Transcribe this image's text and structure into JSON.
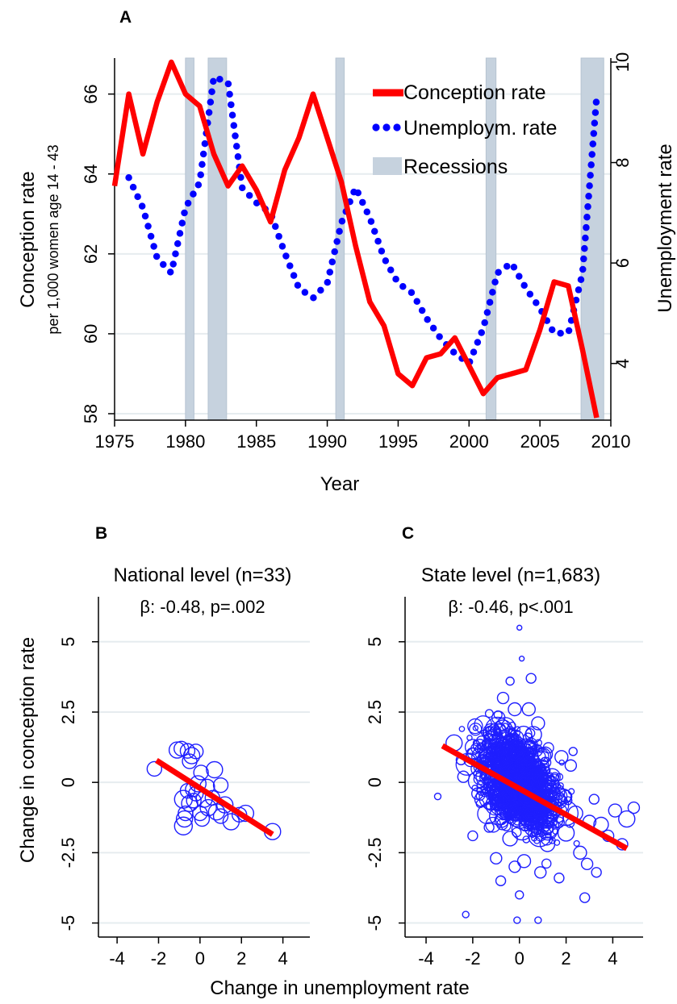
{
  "panels": {
    "A": {
      "letter": "A"
    },
    "B": {
      "letter": "B",
      "title": "National level (n=33)",
      "stat": "β: -0.48, p=.002"
    },
    "C": {
      "letter": "C",
      "title": "State level (n=1,683)",
      "stat": "β: -0.46, p<.001"
    }
  },
  "axes": {
    "A": {
      "xlabel": "Year",
      "ylabel": "Conception rate",
      "ylabel_sub": "per 1,000 women age 14 - 43",
      "y2label": "Unemployment rate",
      "xticks": [
        "1975",
        "1980",
        "1985",
        "1990",
        "1995",
        "2000",
        "2005",
        "2010"
      ],
      "yticks": [
        "58",
        "60",
        "62",
        "64",
        "66"
      ],
      "y2ticks": [
        "4",
        "6",
        "8",
        "10"
      ]
    },
    "BC": {
      "xlabel": "Change in unemployment rate",
      "ylabel": "Change in conception rate",
      "xticks": [
        "-4",
        "-2",
        "0",
        "2",
        "4"
      ],
      "yticks": [
        "-5",
        "-2.5",
        "0",
        "2.5",
        "5"
      ]
    }
  },
  "legend": [
    "Conception rate",
    "Unemploym. rate",
    "Recessions"
  ],
  "colors": {
    "conception": "#ff0000",
    "unemployment": "#0000ff",
    "recession": "#c6d2de",
    "grid": "#e6ecef",
    "scatter": "#1f1fff"
  },
  "chart_data": [
    {
      "type": "line",
      "panel": "A",
      "xlabel": "Year",
      "ylabel": "Conception rate",
      "y2label": "Unemployment rate",
      "xlim": [
        1975,
        2010
      ],
      "ylim": [
        58,
        66.8
      ],
      "y2lim": [
        3,
        10
      ],
      "recessions": [
        [
          1980,
          1980.6
        ],
        [
          1981.6,
          1982.9
        ],
        [
          1990.6,
          1991.2
        ],
        [
          2001.2,
          2001.9
        ],
        [
          2007.9,
          2009.5
        ]
      ],
      "series": [
        {
          "name": "Conception rate",
          "axis": "left",
          "x": [
            1975,
            1976,
            1977,
            1978,
            1979,
            1980,
            1981,
            1982,
            1983,
            1984,
            1985,
            1986,
            1987,
            1988,
            1989,
            1990,
            1991,
            1992,
            1993,
            1994,
            1995,
            1996,
            1997,
            1998,
            1999,
            2000,
            2001,
            2002,
            2003,
            2004,
            2005,
            2006,
            2007,
            2008,
            2009
          ],
          "values": [
            63.7,
            66.0,
            64.5,
            65.8,
            66.8,
            66.0,
            65.7,
            64.5,
            63.7,
            64.2,
            63.6,
            62.8,
            64.1,
            64.9,
            66.0,
            64.9,
            63.8,
            62.2,
            60.8,
            60.2,
            59.0,
            58.7,
            59.4,
            59.5,
            59.9,
            59.2,
            58.5,
            58.9,
            59.0,
            59.1,
            60.1,
            61.3,
            61.2,
            59.6,
            57.9
          ]
        },
        {
          "name": "Unemploym. rate",
          "axis": "right",
          "x": [
            1976,
            1977,
            1978,
            1979,
            1980,
            1981,
            1982,
            1983,
            1984,
            1985,
            1986,
            1987,
            1988,
            1989,
            1990,
            1991,
            1992,
            1993,
            1994,
            1995,
            1996,
            1997,
            1998,
            1999,
            2000,
            2001,
            2002,
            2003,
            2004,
            2005,
            2006,
            2007,
            2008,
            2009
          ],
          "values": [
            7.7,
            7.1,
            6.1,
            5.8,
            7.1,
            7.6,
            9.7,
            9.6,
            7.5,
            7.2,
            7.0,
            6.2,
            5.5,
            5.3,
            5.6,
            6.8,
            7.5,
            6.9,
            6.1,
            5.6,
            5.4,
            4.9,
            4.5,
            4.2,
            4.0,
            4.7,
            5.8,
            6.0,
            5.5,
            5.1,
            4.6,
            4.6,
            5.8,
            9.3
          ]
        }
      ]
    },
    {
      "type": "scatter",
      "panel": "B",
      "title": "National level (n=33)",
      "annotation": "β: -0.48, p=.002",
      "xlabel": "Change in unemployment rate",
      "ylabel": "Change in conception rate",
      "xlim": [
        -4.9,
        5.3
      ],
      "ylim": [
        -5.5,
        6.6
      ],
      "fit": {
        "x": [
          -2.1,
          3.5
        ],
        "y": [
          0.78,
          -1.85
        ]
      },
      "points": [
        [
          -2.2,
          0.48,
          9
        ],
        [
          -1.1,
          1.15,
          10
        ],
        [
          -0.9,
          1.2,
          9
        ],
        [
          -0.6,
          1.12,
          9
        ],
        [
          -0.4,
          0.95,
          10
        ],
        [
          -0.2,
          1.1,
          9
        ],
        [
          -0.5,
          0.75,
          9
        ],
        [
          -0.8,
          -0.6,
          11
        ],
        [
          -0.7,
          -1.1,
          9
        ],
        [
          -0.75,
          -1.3,
          10
        ],
        [
          -0.8,
          -1.55,
          11
        ],
        [
          -0.5,
          -0.75,
          10
        ],
        [
          -0.2,
          -0.4,
          9
        ],
        [
          -0.1,
          -0.05,
          10
        ],
        [
          0.05,
          0.35,
          9
        ],
        [
          0.2,
          -0.6,
          10
        ],
        [
          0.35,
          -0.15,
          9
        ],
        [
          0.4,
          -0.9,
          10
        ],
        [
          0.6,
          -0.55,
          9
        ],
        [
          0.8,
          -1.05,
          10
        ],
        [
          1.0,
          -1.2,
          9
        ],
        [
          1.2,
          -0.8,
          10
        ],
        [
          1.5,
          -1.4,
          10
        ],
        [
          1.9,
          -1.15,
          9
        ],
        [
          2.2,
          -1.1,
          10
        ],
        [
          3.5,
          -1.75,
          10
        ],
        [
          0.1,
          -1.3,
          9
        ],
        [
          -0.3,
          -0.65,
          9
        ],
        [
          0.0,
          -1.1,
          9
        ],
        [
          -0.35,
          -0.25,
          9
        ],
        [
          0.7,
          0.45,
          10
        ],
        [
          1.0,
          -0.1,
          9
        ],
        [
          -0.6,
          -0.3,
          9
        ]
      ]
    },
    {
      "type": "scatter",
      "panel": "C",
      "title": "State level (n=1,683)",
      "annotation": "β: -0.46, p<.001",
      "xlabel": "Change in unemployment rate",
      "ylabel": "Change in conception rate",
      "xlim": [
        -4.9,
        5.3
      ],
      "ylim": [
        -5.5,
        6.6
      ],
      "n": 1683,
      "fit": {
        "x": [
          -3.3,
          4.6
        ],
        "y": [
          1.3,
          -2.35
        ]
      },
      "points_note": "representative subset of the 1,683 state-year observations",
      "points": [
        [
          -3.5,
          -0.5,
          4
        ],
        [
          -2.8,
          1.4,
          10
        ],
        [
          -2.5,
          0.8,
          6
        ],
        [
          -2.3,
          -4.7,
          4
        ],
        [
          -2.0,
          1.0,
          8
        ],
        [
          -1.8,
          -0.4,
          7
        ],
        [
          -1.5,
          0.6,
          9
        ],
        [
          -1.3,
          -1.6,
          6
        ],
        [
          -1.2,
          1.8,
          10
        ],
        [
          -1.0,
          -2.7,
          7
        ],
        [
          -0.9,
          2.3,
          8
        ],
        [
          -0.8,
          -3.5,
          6
        ],
        [
          -0.7,
          3.0,
          7
        ],
        [
          -0.6,
          -0.9,
          12
        ],
        [
          -0.5,
          1.5,
          14
        ],
        [
          -0.4,
          -2.0,
          9
        ],
        [
          -0.3,
          0.3,
          16
        ],
        [
          -0.2,
          2.6,
          8
        ],
        [
          -0.1,
          -1.2,
          13
        ],
        [
          0.0,
          -4.0,
          5
        ],
        [
          0.0,
          5.5,
          3
        ],
        [
          0.1,
          0.8,
          15
        ],
        [
          0.1,
          4.4,
          3
        ],
        [
          0.2,
          -2.8,
          8
        ],
        [
          0.3,
          1.2,
          12
        ],
        [
          0.4,
          -0.4,
          14
        ],
        [
          0.5,
          3.7,
          6
        ],
        [
          0.6,
          -1.6,
          11
        ],
        [
          0.7,
          0.4,
          13
        ],
        [
          0.8,
          2.1,
          8
        ],
        [
          0.9,
          -3.2,
          7
        ],
        [
          1.0,
          -0.8,
          12
        ],
        [
          1.1,
          1.0,
          9
        ],
        [
          1.2,
          -2.2,
          9
        ],
        [
          1.4,
          0.2,
          10
        ],
        [
          1.5,
          -1.3,
          11
        ],
        [
          1.7,
          -3.4,
          6
        ],
        [
          1.9,
          -0.5,
          9
        ],
        [
          2.0,
          -1.8,
          10
        ],
        [
          2.2,
          0.6,
          7
        ],
        [
          2.4,
          -1.1,
          9
        ],
        [
          2.6,
          -2.5,
          8
        ],
        [
          2.8,
          -4.1,
          6
        ],
        [
          3.0,
          -1.4,
          8
        ],
        [
          3.2,
          -0.6,
          6
        ],
        [
          3.5,
          -1.5,
          9
        ],
        [
          3.8,
          -1.9,
          7
        ],
        [
          4.1,
          -1.0,
          8
        ],
        [
          4.4,
          -2.2,
          7
        ],
        [
          4.6,
          -1.3,
          10
        ],
        [
          4.9,
          -0.9,
          7
        ],
        [
          -0.7,
          1.9,
          11
        ],
        [
          -0.3,
          -0.6,
          18
        ],
        [
          0.2,
          0.1,
          18
        ],
        [
          0.5,
          -1.0,
          15
        ],
        [
          -1.1,
          0.1,
          12
        ],
        [
          1.3,
          -1.0,
          13
        ],
        [
          -1.6,
          -0.6,
          9
        ],
        [
          -0.9,
          -1.2,
          11
        ],
        [
          0.6,
          1.7,
          10
        ],
        [
          -0.4,
          3.6,
          5
        ],
        [
          0.8,
          -4.9,
          4
        ],
        [
          -0.1,
          -4.9,
          4
        ],
        [
          2.3,
          1.1,
          5
        ],
        [
          -2.0,
          -1.9,
          6
        ],
        [
          3.3,
          -3.2,
          6
        ],
        [
          -2.4,
          0.2,
          7
        ],
        [
          1.8,
          0.9,
          8
        ],
        [
          -0.2,
          -3.0,
          7
        ],
        [
          0.4,
          2.6,
          8
        ],
        [
          2.9,
          -2.9,
          7
        ],
        [
          -1.7,
          1.3,
          8
        ]
      ]
    }
  ]
}
